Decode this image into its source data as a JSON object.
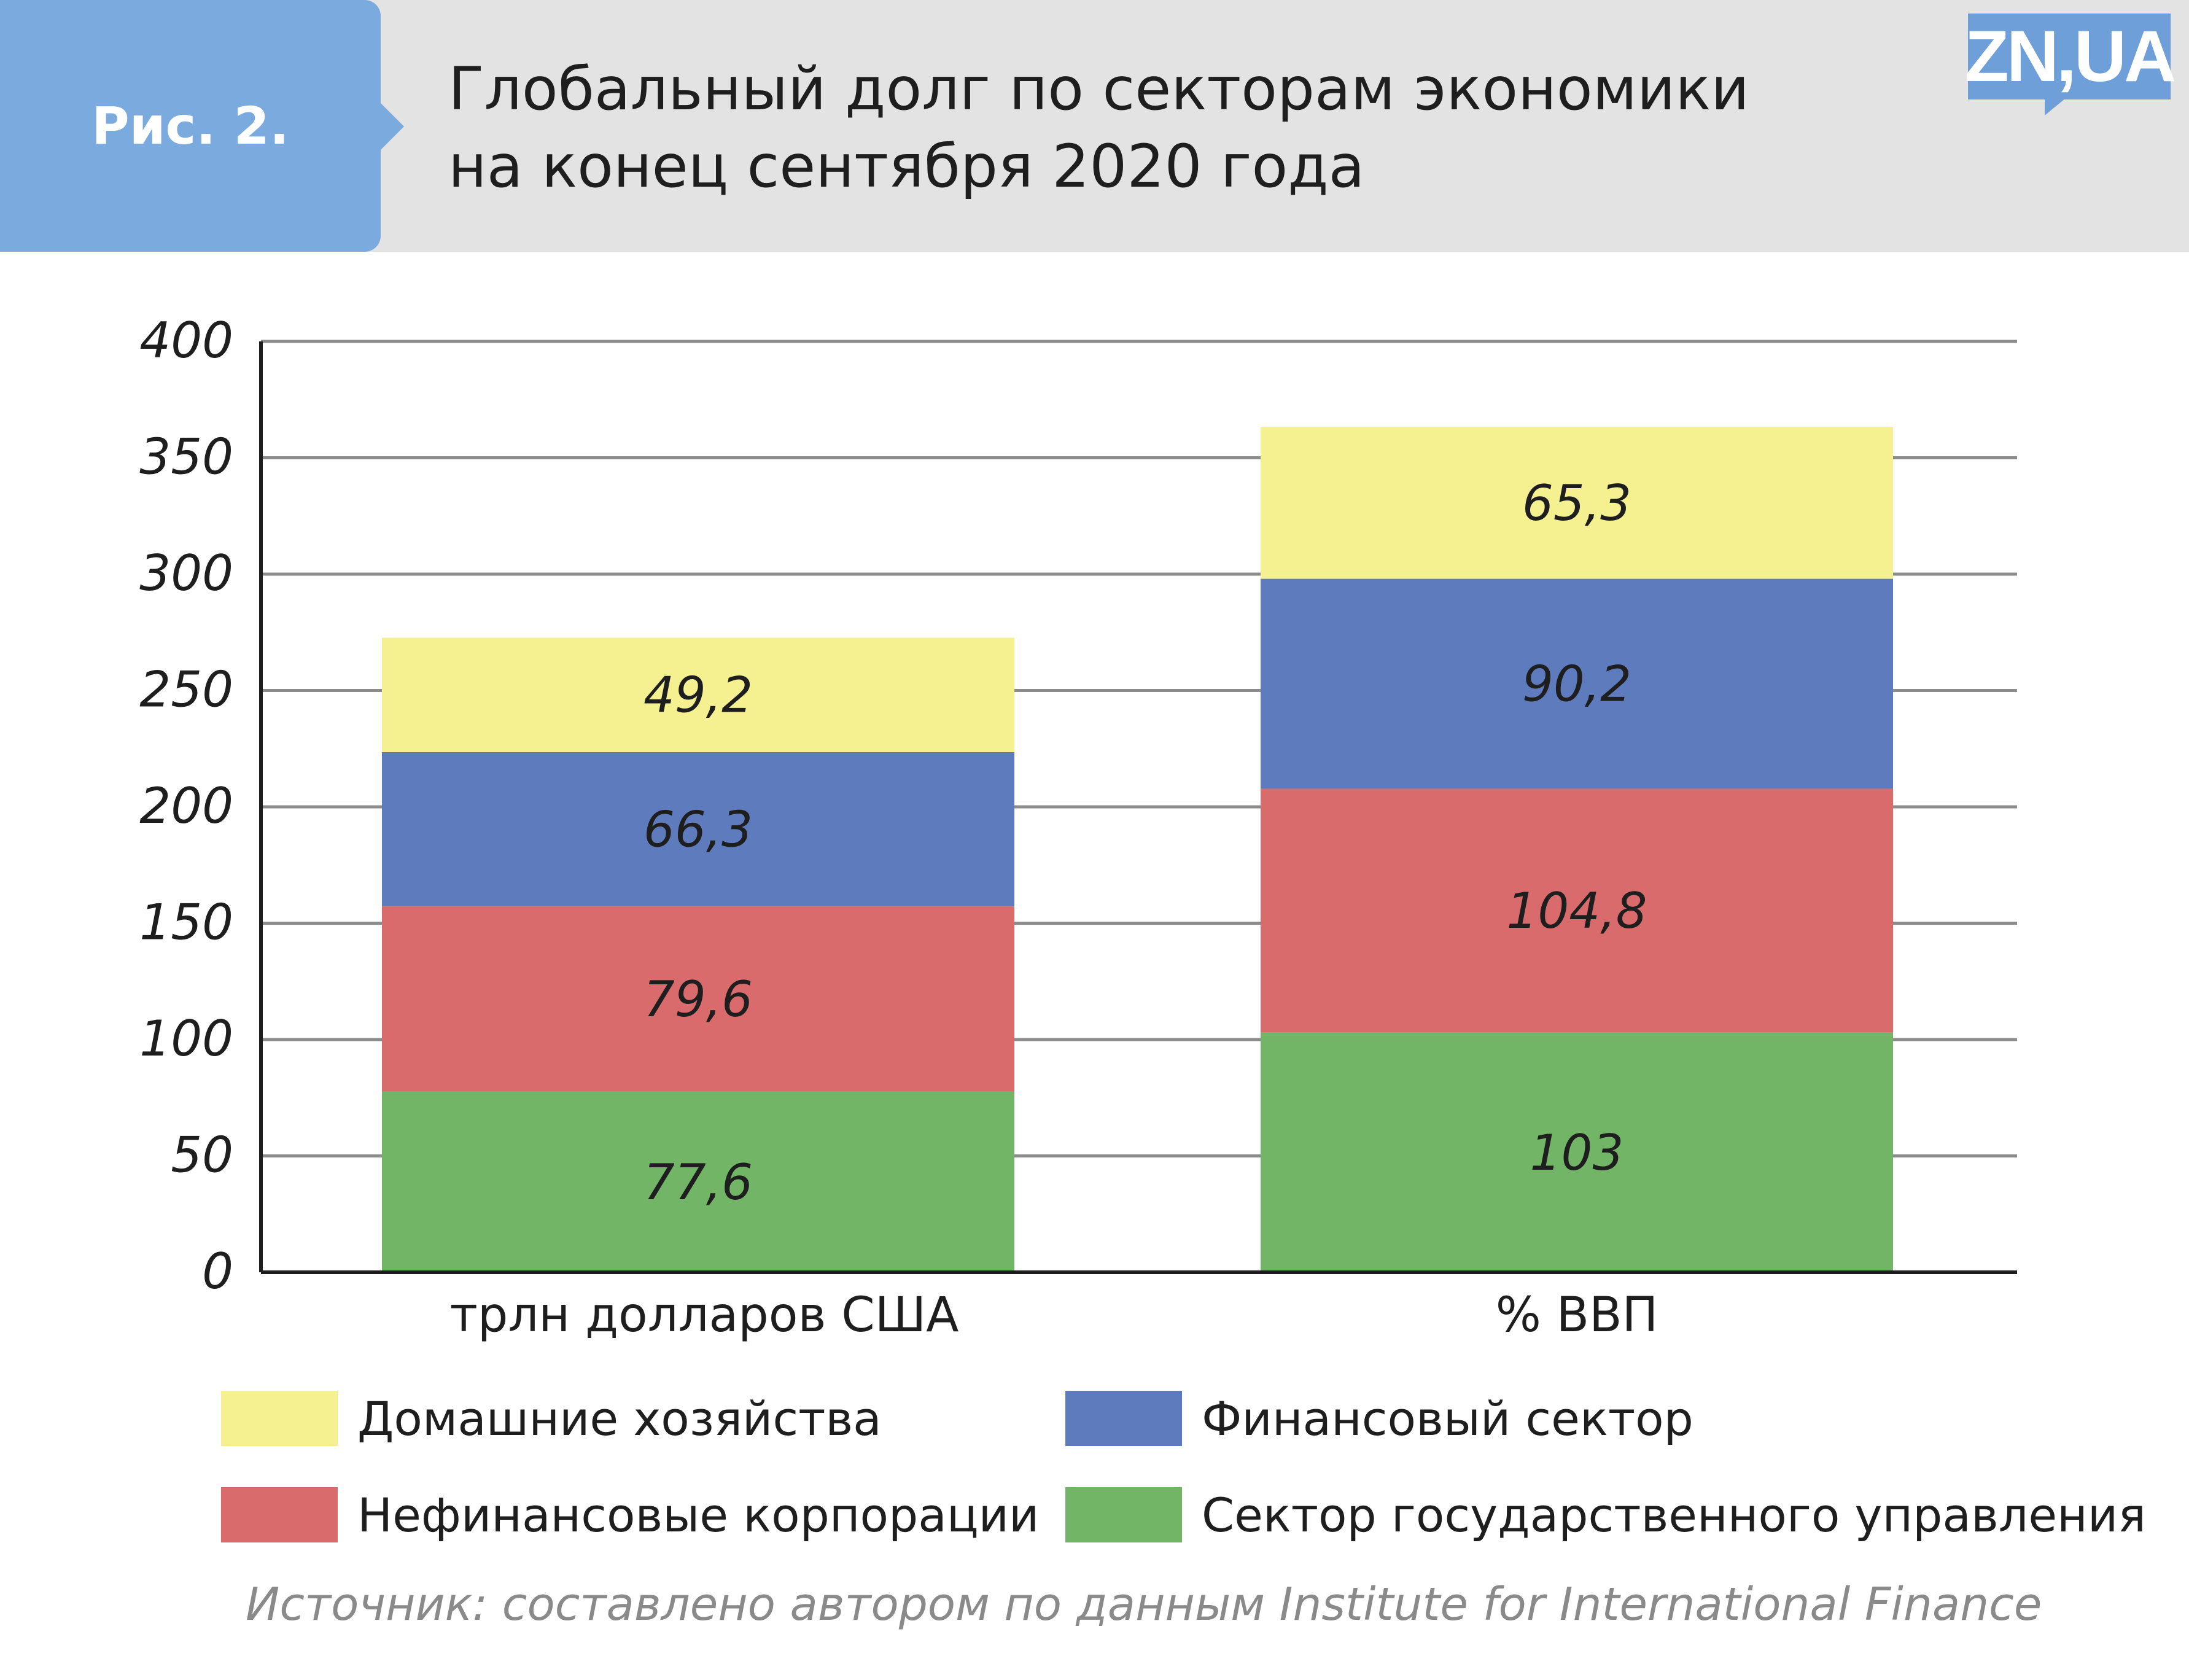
{
  "header": {
    "figure_label": "Рис. 2.",
    "title_line1": "Глобальный долг по секторам экономики",
    "title_line2": "на конец сентября 2020 года",
    "logo_text": "ZN,UA"
  },
  "colors": {
    "header_bg": "#e3e3e3",
    "figure_tab": "#7aaade",
    "logo": "#6f9fd8",
    "households": "#f6f190",
    "financial": "#5e7bbd",
    "nonfinancial": "#d96b6c",
    "government": "#72b566"
  },
  "chart_data": {
    "type": "bar",
    "stacked": true,
    "categories": [
      "трлн долларов США",
      "% ВВП"
    ],
    "series": [
      {
        "name": "Сектор государственного управления",
        "color": "#72b566",
        "values": [
          77.6,
          103
        ],
        "labels": [
          "77,6",
          "103"
        ]
      },
      {
        "name": "Нефинансовые корпорации",
        "color": "#d96b6c",
        "values": [
          79.6,
          104.8
        ],
        "labels": [
          "79,6",
          "104,8"
        ]
      },
      {
        "name": "Финансовый сектор",
        "color": "#5e7bbd",
        "values": [
          66.3,
          90.2
        ],
        "labels": [
          "66,3",
          "90,2"
        ]
      },
      {
        "name": "Домашние хозяйства",
        "color": "#f6f190",
        "values": [
          49.2,
          65.3
        ],
        "labels": [
          "49,2",
          "65,3"
        ]
      }
    ],
    "ylim": [
      0,
      400
    ],
    "yticks": [
      0,
      50,
      100,
      150,
      200,
      250,
      300,
      350,
      400
    ],
    "grid": true,
    "legend_position": "bottom"
  },
  "legend": [
    {
      "label": "Домашние хозяйства",
      "color": "#f6f190"
    },
    {
      "label": "Финансовый сектор",
      "color": "#5e7bbd"
    },
    {
      "label": "Нефинансовые корпорации",
      "color": "#d96b6c"
    },
    {
      "label": "Сектор государственного управления",
      "color": "#72b566"
    }
  ],
  "source_text": "Источник: составлено автором по данным Institute for International Finance"
}
